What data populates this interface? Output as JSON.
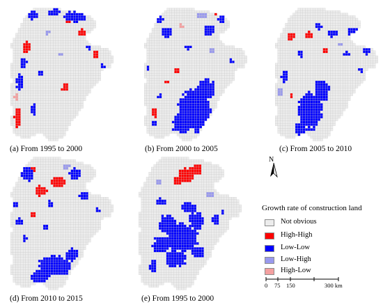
{
  "colors": {
    "not_obvious": "#ececec",
    "high_high": "#ff0000",
    "low_low": "#0000ff",
    "low_high": "#9999ee",
    "high_low": "#f4a0a0",
    "grid_line": "#c8c8c8"
  },
  "panels": [
    {
      "caption": "(a) From 1995 to 2000"
    },
    {
      "caption": "(b) From 2000 to 2005"
    },
    {
      "caption": "(c) From 2005 to 2010"
    },
    {
      "caption": "(d) From 2010 to 2015"
    },
    {
      "caption": "(e) From 1995 to 2000"
    }
  ],
  "north_arrow": {
    "label": "N"
  },
  "legend": {
    "title": "Growth rate of construction land",
    "items": [
      {
        "label": "Not obvious",
        "color": "#ececec"
      },
      {
        "label": "High-High",
        "color": "#ff0000"
      },
      {
        "label": "Low-Low",
        "color": "#0000ff"
      },
      {
        "label": "Low-High",
        "color": "#9999ee"
      },
      {
        "label": "High-Low",
        "color": "#f4a0a0"
      }
    ]
  },
  "scale_bar": {
    "ticks": [
      "0",
      "75",
      "150",
      "300 km"
    ]
  }
}
